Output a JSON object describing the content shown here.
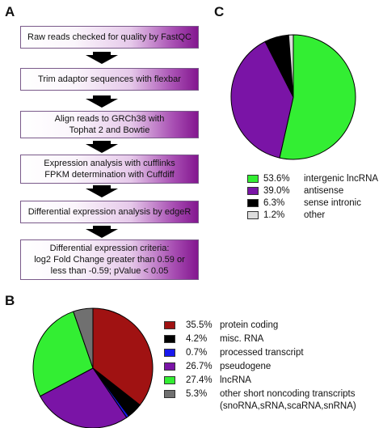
{
  "panel_labels": [
    "A",
    "B",
    "C"
  ],
  "flowchart": {
    "steps": [
      [
        "Raw reads checked for quality by FastQC"
      ],
      [
        "Trim adaptor sequences with flexbar"
      ],
      [
        "Align reads to GRCh38 with",
        "Tophat 2 and Bowtie"
      ],
      [
        "Expression analysis with cufflinks",
        "FPKM determination with Cuffdiff"
      ],
      [
        "Differential expression analysis by edgeR"
      ],
      [
        "Differential expression criteria:",
        "log2 Fold Change greater than 0.59 or",
        "less than -0.59; pValue < 0.05"
      ]
    ]
  },
  "chart_data": [
    {
      "type": "pie",
      "panel": "C",
      "start_angle_deg": 0,
      "direction": "clockwise",
      "slices": [
        {
          "pct_label": "53.6%",
          "label": "intergenic lncRNA",
          "value": 53.6,
          "color": "#33ee33"
        },
        {
          "pct_label": "39.0%",
          "label": "antisense",
          "value": 39.0,
          "color": "#7a14a6"
        },
        {
          "pct_label": "6.3%",
          "label": "sense intronic",
          "value": 6.3,
          "color": "#000000"
        },
        {
          "pct_label": "1.2%",
          "label": "other",
          "value": 1.2,
          "color": "#dddddd"
        }
      ]
    },
    {
      "type": "pie",
      "panel": "B",
      "start_angle_deg": 0,
      "direction": "clockwise",
      "slices": [
        {
          "pct_label": "35.5%",
          "label": "protein coding",
          "value": 35.5,
          "color": "#a01212"
        },
        {
          "pct_label": "4.2%",
          "label": "misc. RNA",
          "value": 4.2,
          "color": "#000000"
        },
        {
          "pct_label": "0.7%",
          "label": "processed transcript",
          "value": 0.7,
          "color": "#1818ee"
        },
        {
          "pct_label": "26.7%",
          "label": "pseudogene",
          "value": 26.7,
          "color": "#7a14a6"
        },
        {
          "pct_label": "27.4%",
          "label": "lncRNA",
          "value": 27.4,
          "color": "#33ee33"
        },
        {
          "pct_label": "5.3%",
          "label": "other short noncoding transcripts",
          "sub": "(snoRNA,sRNA,scaRNA,snRNA)",
          "value": 5.3,
          "color": "#707070"
        }
      ]
    }
  ]
}
